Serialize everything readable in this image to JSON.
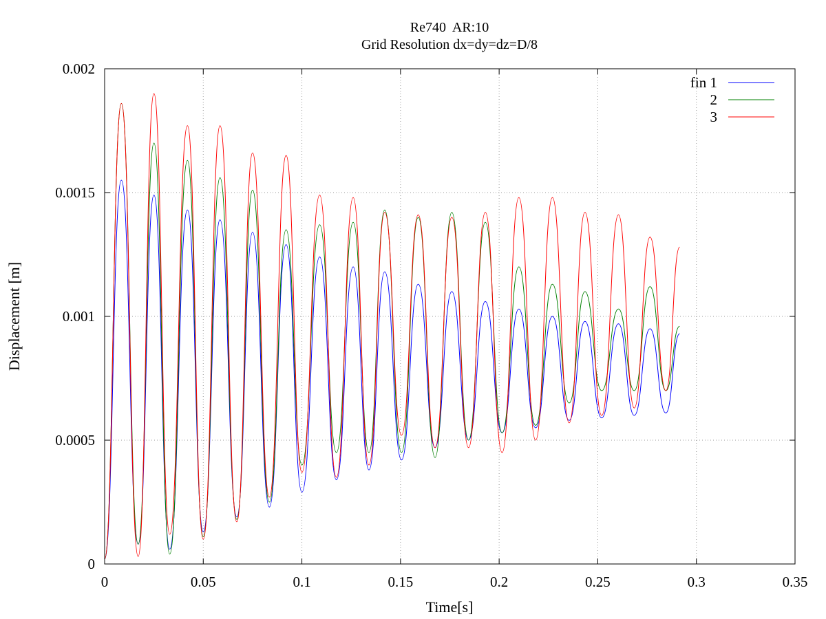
{
  "chart_data": {
    "type": "line",
    "title": "Re740  AR:10",
    "subtitle": "Grid Resolution dx=dy=dz=D/8",
    "xlabel": "Time[s]",
    "ylabel": "Displacement [m]",
    "xlim": [
      0,
      0.35
    ],
    "ylim": [
      0,
      0.002
    ],
    "x_ticks": [
      0,
      0.05,
      0.1,
      0.15,
      0.2,
      0.25,
      0.3,
      0.35
    ],
    "x_tick_labels": [
      "0",
      "0.05",
      "0.1",
      "0.15",
      "0.2",
      "0.25",
      "0.3",
      "0.35"
    ],
    "y_ticks": [
      0,
      0.0005,
      0.001,
      0.0015,
      0.002
    ],
    "y_tick_labels": [
      "0",
      "0.0005",
      "0.001",
      "0.0015",
      "0.002"
    ],
    "grid": true,
    "legend_position": "top-right",
    "legend_prefix": "fin",
    "series": [
      {
        "name": "1",
        "color": "#0000ff",
        "x": [
          0,
          0.0085,
          0.017,
          0.025,
          0.033,
          0.042,
          0.05,
          0.0585,
          0.067,
          0.075,
          0.0835,
          0.092,
          0.1,
          0.109,
          0.1175,
          0.126,
          0.134,
          0.142,
          0.1505,
          0.159,
          0.1675,
          0.176,
          0.1845,
          0.193,
          0.2015,
          0.21,
          0.2185,
          0.227,
          0.2355,
          0.2435,
          0.252,
          0.2605,
          0.2685,
          0.2765,
          0.2845,
          0.2915
        ],
        "values": [
          2e-05,
          0.00155,
          8e-05,
          0.00149,
          6e-05,
          0.00143,
          0.00013,
          0.00139,
          0.00019,
          0.00134,
          0.00023,
          0.00129,
          0.00029,
          0.00124,
          0.00034,
          0.0012,
          0.00038,
          0.00118,
          0.00042,
          0.00113,
          0.00047,
          0.0011,
          0.0005,
          0.00106,
          0.00053,
          0.00103,
          0.00055,
          0.001,
          0.00058,
          0.00098,
          0.00059,
          0.00097,
          0.0006,
          0.00095,
          0.00061,
          0.00093
        ]
      },
      {
        "name": "2",
        "color": "#008000",
        "x": [
          0,
          0.0085,
          0.017,
          0.025,
          0.033,
          0.042,
          0.05,
          0.0585,
          0.067,
          0.075,
          0.0835,
          0.092,
          0.1,
          0.109,
          0.1175,
          0.126,
          0.134,
          0.142,
          0.1505,
          0.159,
          0.1675,
          0.176,
          0.1845,
          0.193,
          0.2015,
          0.21,
          0.2185,
          0.227,
          0.2355,
          0.2435,
          0.252,
          0.2605,
          0.2685,
          0.2765,
          0.2845,
          0.2915
        ],
        "values": [
          2e-05,
          0.00186,
          8e-05,
          0.0017,
          4e-05,
          0.00163,
          0.00011,
          0.00156,
          0.00018,
          0.00151,
          0.00025,
          0.00135,
          0.0004,
          0.00137,
          0.00045,
          0.00138,
          0.00045,
          0.00143,
          0.00045,
          0.0014,
          0.00043,
          0.00142,
          0.0005,
          0.00138,
          0.00053,
          0.0012,
          0.00056,
          0.00113,
          0.00065,
          0.0011,
          0.0007,
          0.00103,
          0.0007,
          0.00112,
          0.0007,
          0.00096
        ]
      },
      {
        "name": "3",
        "color": "#ff0000",
        "x": [
          0,
          0.0085,
          0.017,
          0.025,
          0.033,
          0.042,
          0.05,
          0.0585,
          0.067,
          0.075,
          0.0835,
          0.092,
          0.1,
          0.109,
          0.1175,
          0.126,
          0.134,
          0.142,
          0.1505,
          0.159,
          0.1675,
          0.176,
          0.1845,
          0.193,
          0.2015,
          0.21,
          0.2185,
          0.227,
          0.2355,
          0.2435,
          0.252,
          0.2605,
          0.2685,
          0.2765,
          0.2845,
          0.2915
        ],
        "values": [
          2e-05,
          0.00186,
          3e-05,
          0.0019,
          0.00012,
          0.00177,
          0.0001,
          0.00177,
          0.00017,
          0.00166,
          0.00027,
          0.00165,
          0.00037,
          0.00149,
          0.00035,
          0.00148,
          0.0004,
          0.00142,
          0.00052,
          0.00141,
          0.00047,
          0.0014,
          0.00047,
          0.00142,
          0.00045,
          0.00148,
          0.0005,
          0.00148,
          0.00057,
          0.00142,
          0.0006,
          0.00141,
          0.00063,
          0.00132,
          0.0007,
          0.00128
        ]
      }
    ]
  }
}
